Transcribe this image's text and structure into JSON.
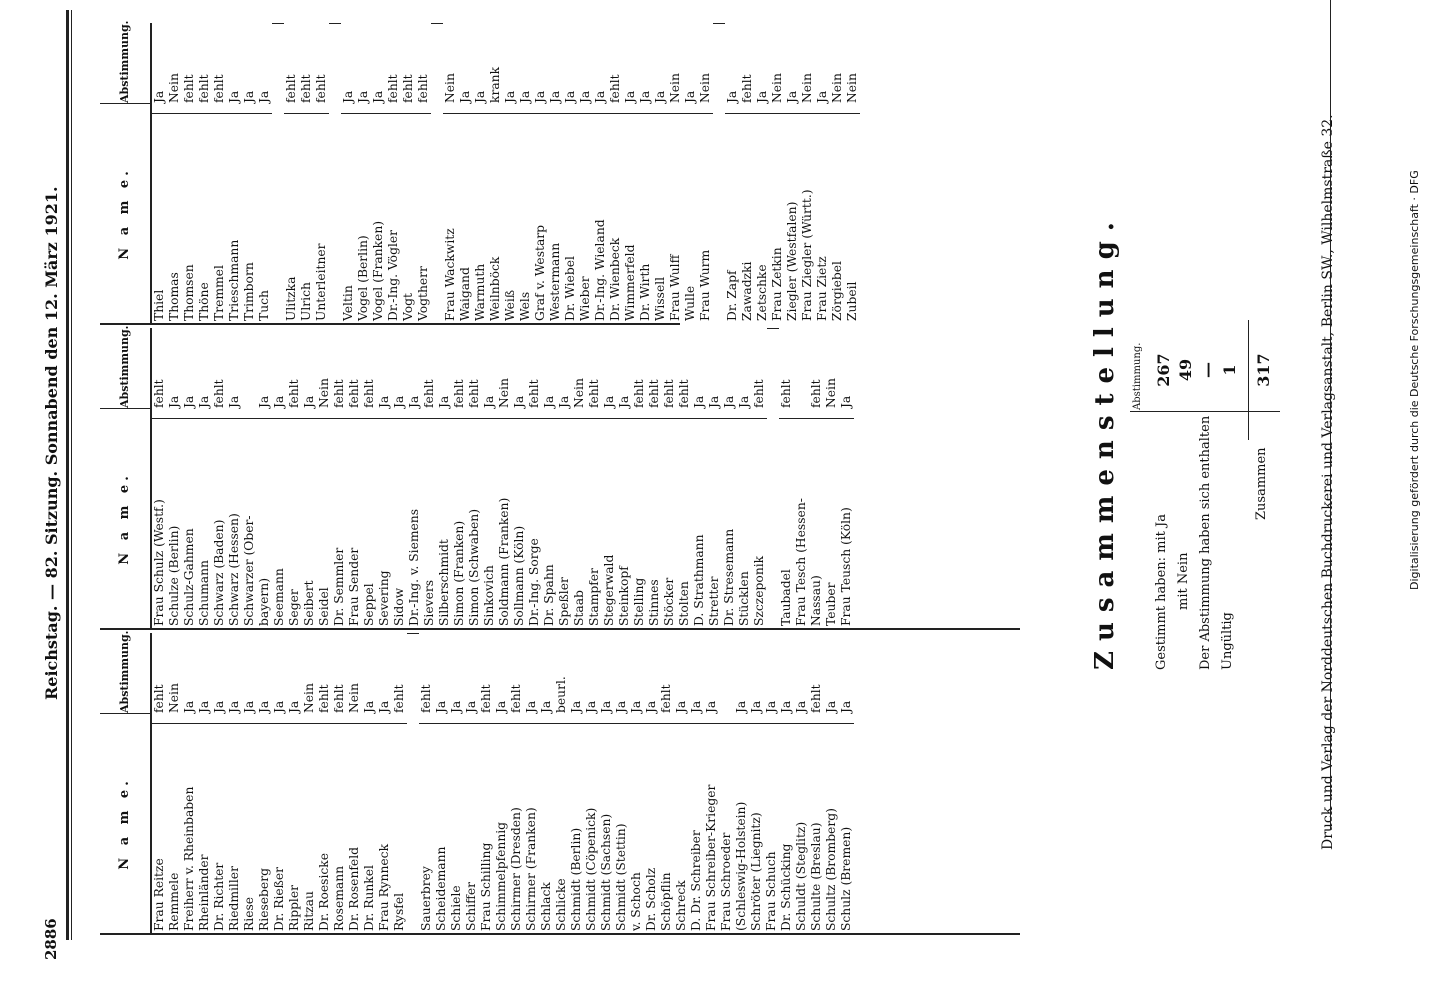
{
  "page_number": "2886",
  "header": "Reichstag. — 82. Sitzung. Sonnabend den 12. März 1921.",
  "col_name": "N a m e.",
  "col_vote": "Abstimmung.",
  "col1": [
    [
      "Frau Reitze",
      "fehlt"
    ],
    [
      "Remmele",
      "Nein"
    ],
    [
      "Freiherr v. Rheinbaben",
      "Ja"
    ],
    [
      "Rheinländer",
      "Ja"
    ],
    [
      "Dr. Richter",
      "Ja"
    ],
    [
      "Riedmiller",
      "Ja"
    ],
    [
      "Riese",
      "Ja"
    ],
    [
      "Rieseberg",
      "Ja"
    ],
    [
      "Dr. Rießer",
      "Ja"
    ],
    [
      "Rippler",
      "Ja"
    ],
    [
      "Ritzau",
      "Nein"
    ],
    [
      "Dr. Roesicke",
      "fehlt"
    ],
    [
      "Rosemann",
      "fehlt"
    ],
    [
      "Dr. Rosenfeld",
      "Nein"
    ],
    [
      "Dr. Runkel",
      "Ja"
    ],
    [
      "Frau Rynneck",
      "Ja"
    ],
    [
      "Rysfel",
      "fehlt"
    ],
    [
      "",
      ""
    ],
    [
      "Sauerbrey",
      "fehlt"
    ],
    [
      "Scheidemann",
      "Ja"
    ],
    [
      "Schiele",
      "Ja"
    ],
    [
      "Schiffer",
      "Ja"
    ],
    [
      "Frau Schilling",
      "fehlt"
    ],
    [
      "Schimmelpfennig",
      "Ja"
    ],
    [
      "Schirmer (Dresden)",
      "fehlt"
    ],
    [
      "Schirmer (Franken)",
      "Ja"
    ],
    [
      "Schlack",
      "Ja"
    ],
    [
      "Schlicke",
      "beurl."
    ],
    [
      "Schmidt (Berlin)",
      "Ja"
    ],
    [
      "Schmidt (Cöpenick)",
      "Ja"
    ],
    [
      "Schmidt (Sachsen)",
      "Ja"
    ],
    [
      "Schmidt (Stettin)",
      "Ja"
    ],
    [
      "v. Schoch",
      "Ja"
    ],
    [
      "Dr. Scholz",
      "Ja"
    ],
    [
      "Schöpflin",
      "fehlt"
    ],
    [
      "Schreck",
      "Ja"
    ],
    [
      "D. Dr. Schreiber",
      "Ja"
    ],
    [
      "Frau Schreiber-Krieger",
      "Ja"
    ],
    [
      "Frau Schroeder",
      ""
    ],
    [
      "(Schleswig-Holstein)",
      "Ja"
    ],
    [
      "Schröter (Liegnitz)",
      "Ja"
    ],
    [
      "Frau Schuch",
      "Ja"
    ],
    [
      "Dr. Schücking",
      "Ja"
    ],
    [
      "Schuldt (Steglitz)",
      "Ja"
    ],
    [
      "Schulte (Breslau)",
      "fehlt"
    ],
    [
      "Schultz (Bromberg)",
      "Ja"
    ],
    [
      "Schulz (Bremen)",
      "Ja"
    ]
  ],
  "col2": [
    [
      "Frau Schulz (Westf.)",
      "fehlt"
    ],
    [
      "Schulze (Berlin)",
      "Ja"
    ],
    [
      "Schulz-Gahmen",
      "Ja"
    ],
    [
      "Schumann",
      "Ja"
    ],
    [
      "Schwarz (Baden)",
      "fehlt"
    ],
    [
      "Schwarz (Hessen)",
      "Ja"
    ],
    [
      "Schwarzer (Ober-",
      ""
    ],
    [
      "bayern)",
      "Ja"
    ],
    [
      "Seemann",
      "Ja"
    ],
    [
      "Seger",
      "fehlt"
    ],
    [
      "Seibert",
      "Ja"
    ],
    [
      "Seidel",
      "Nein"
    ],
    [
      "Dr. Semmler",
      "fehlt"
    ],
    [
      "Frau Sender",
      "fehlt"
    ],
    [
      "Seppel",
      "fehlt"
    ],
    [
      "Severing",
      "Ja"
    ],
    [
      "Sidow",
      "Ja"
    ],
    [
      "Dr.-Ing. v. Siemens",
      "Ja"
    ],
    [
      "Sievers",
      "fehlt"
    ],
    [
      "Silberschmidt",
      "Ja"
    ],
    [
      "Simon (Franken)",
      "fehlt"
    ],
    [
      "Simon (Schwaben)",
      "fehlt"
    ],
    [
      "Sinkovich",
      "Ja"
    ],
    [
      "Soldmann (Franken)",
      "Nein"
    ],
    [
      "Sollmann (Köln)",
      "Ja"
    ],
    [
      "Dr.-Ing. Sorge",
      "fehlt"
    ],
    [
      "Dr. Spahn",
      "Ja"
    ],
    [
      "Speßler",
      "Ja"
    ],
    [
      "Staab",
      "Nein"
    ],
    [
      "Stampfer",
      "fehlt"
    ],
    [
      "Stegerwald",
      "Ja"
    ],
    [
      "Steinkopf",
      "Ja"
    ],
    [
      "Stelling",
      "fehlt"
    ],
    [
      "Stinnes",
      "fehlt"
    ],
    [
      "Stöcker",
      "fehlt"
    ],
    [
      "Stolten",
      "fehlt"
    ],
    [
      "D. Strathmann",
      "Ja"
    ],
    [
      "Stretter",
      "Ja"
    ],
    [
      "Dr. Stresemann",
      "Ja"
    ],
    [
      "Stücklen",
      "Ja"
    ],
    [
      "Szczeponik",
      "fehlt"
    ],
    [
      "",
      ""
    ],
    [
      "Taubadel",
      "fehlt"
    ],
    [
      "Frau Tesch (Hessen-",
      ""
    ],
    [
      "Nassau)",
      "fehlt"
    ],
    [
      "Teuber",
      "Nein"
    ],
    [
      "Frau Teusch (Köln)",
      "Ja"
    ]
  ],
  "col3": [
    [
      "Thiel",
      "Ja"
    ],
    [
      "Thomas",
      "Nein"
    ],
    [
      "Thomsen",
      "fehlt"
    ],
    [
      "Thöne",
      "fehlt"
    ],
    [
      "Tremmel",
      "fehlt"
    ],
    [
      "Trieschmann",
      "Ja"
    ],
    [
      "Trimborn",
      "Ja"
    ],
    [
      "Tuch",
      "Ja"
    ],
    [
      "",
      ""
    ],
    [
      "Ulitzka",
      "fehlt"
    ],
    [
      "Ulrich",
      "fehlt"
    ],
    [
      "Unterleitner",
      "fehlt"
    ],
    [
      "",
      ""
    ],
    [
      "Veltin",
      "Ja"
    ],
    [
      "Vogel (Berlin)",
      "Ja"
    ],
    [
      "Vogel (Franken)",
      "Ja"
    ],
    [
      "Dr.-Ing. Vögler",
      "fehlt"
    ],
    [
      "Vogt",
      "fehlt"
    ],
    [
      "Vogtherr",
      "fehlt"
    ],
    [
      "",
      ""
    ],
    [
      "Frau Wackwitz",
      "Nein"
    ],
    [
      "Waigand",
      "Ja"
    ],
    [
      "Warmuth",
      "Ja"
    ],
    [
      "Weilnböck",
      "krank"
    ],
    [
      "Weiß",
      "Ja"
    ],
    [
      "Wels",
      "Ja"
    ],
    [
      "Graf v. Westarp",
      "Ja"
    ],
    [
      "Westermann",
      "Ja"
    ],
    [
      "Dr. Wiebel",
      "Ja"
    ],
    [
      "Wieber",
      "Ja"
    ],
    [
      "Dr.-Ing. Wieland",
      "Ja"
    ],
    [
      "Dr. Wienbeck",
      "fehlt"
    ],
    [
      "Wimmerfeld",
      "Ja"
    ],
    [
      "Dr. Wirth",
      "Ja"
    ],
    [
      "Wissell",
      "Ja"
    ],
    [
      "Frau Wulff",
      "Nein"
    ],
    [
      "Wulle",
      "Ja"
    ],
    [
      "Frau Wurm",
      "Nein"
    ],
    [
      "",
      ""
    ],
    [
      "Dr. Zapf",
      "Ja"
    ],
    [
      "Zawadzki",
      "fehlt"
    ],
    [
      "Zetschke",
      "Ja"
    ],
    [
      "Frau Zetkin",
      "Nein"
    ],
    [
      "Ziegler (Westfalen)",
      "Ja"
    ],
    [
      "Frau Ziegler (Württ.)",
      "Nein"
    ],
    [
      "Frau Zietz",
      "Ja"
    ],
    [
      "Zörgiebel",
      "Nein"
    ],
    [
      "Zubeil",
      "Nein"
    ]
  ],
  "summary": {
    "title": "Zusammenstellung.",
    "header": "Abstimmung.",
    "rows": [
      {
        "label": "Gestimmt haben: mit Ja",
        "value": "267"
      },
      {
        "label": "mit Nein",
        "value": "49"
      },
      {
        "label": "Der Abstimmung haben sich enthalten",
        "value": "—"
      },
      {
        "label": "Ungültig",
        "value": "1"
      }
    ],
    "total_label": "Zusammen",
    "total_value": "317"
  },
  "footer": "Druck und Verlag der Norddeutschen Buchdruckerei und Verlagsanstalt, Berlin SW., Wilhelmstraße 32.",
  "dfg_note": "Digitalisierung gefördert durch die Deutsche Forschungsgemeinschaft · DFG"
}
